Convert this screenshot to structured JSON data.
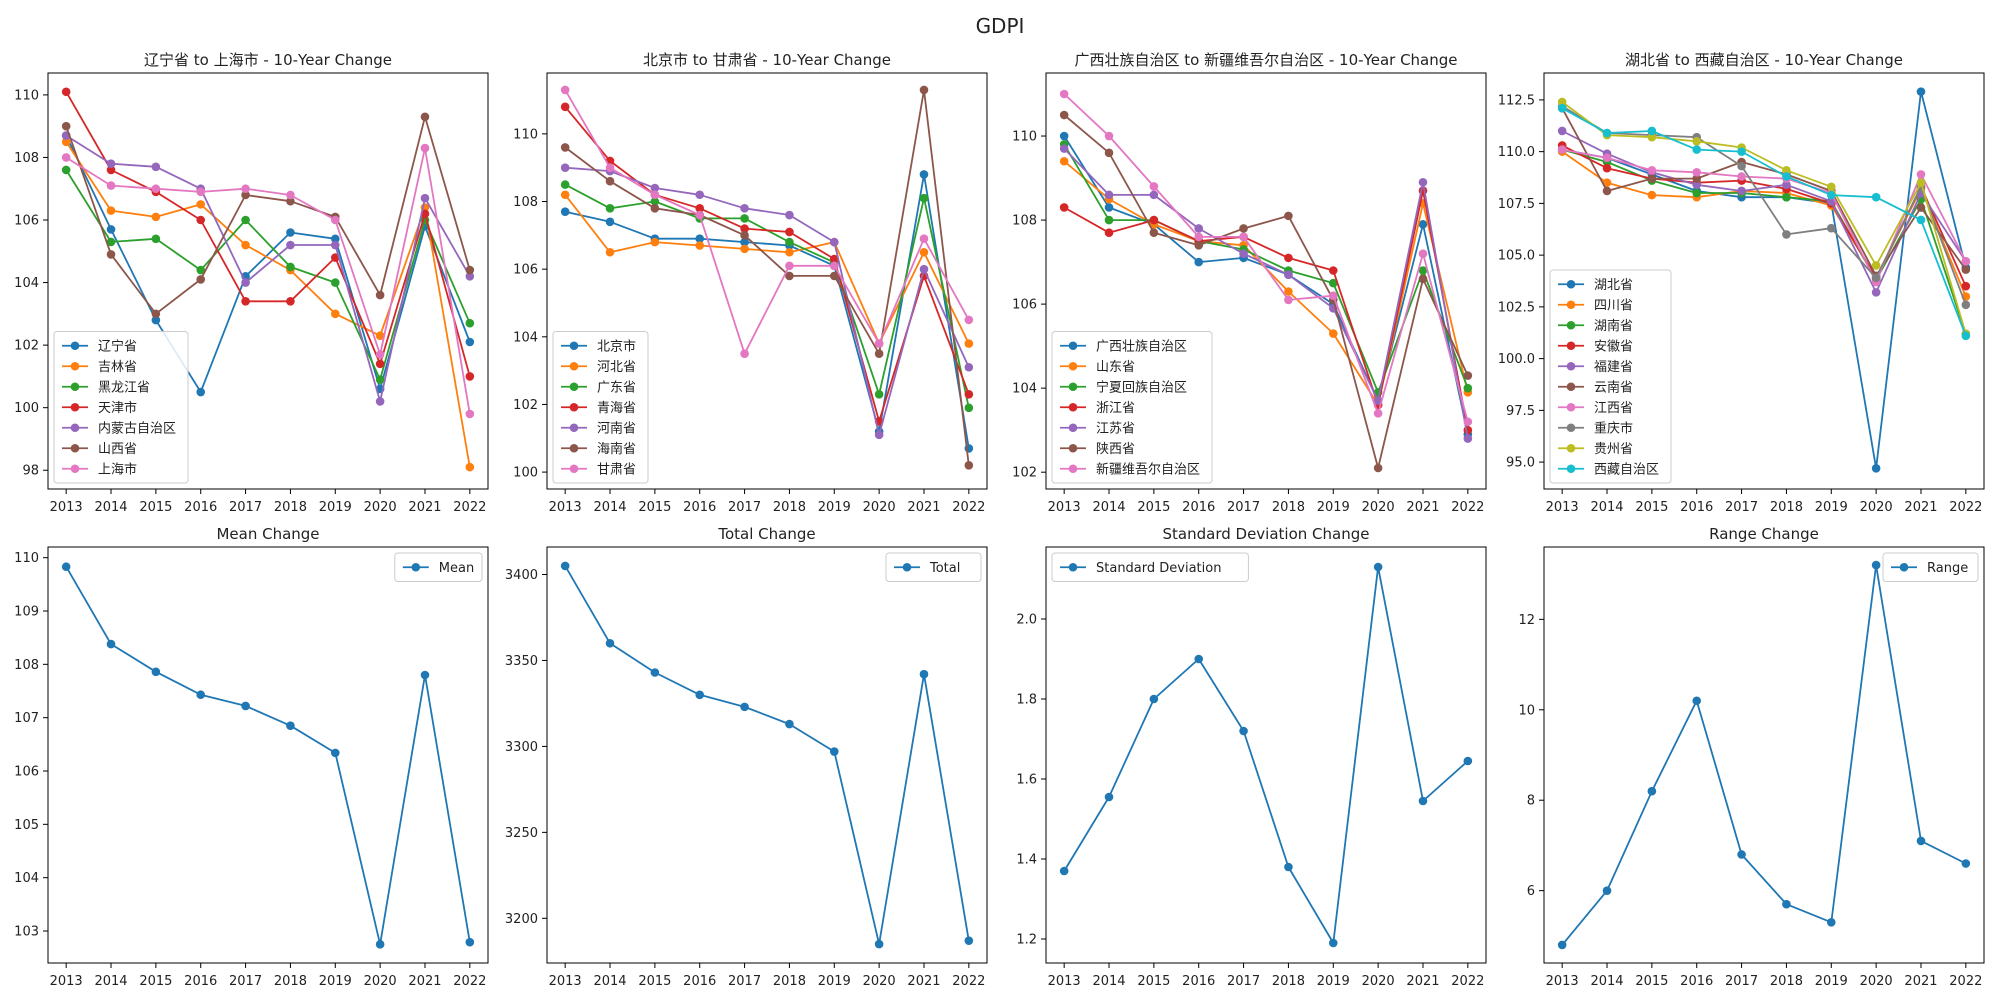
{
  "figure": {
    "title": "GDPI"
  },
  "chart_data": [
    {
      "type": "line",
      "title": "辽宁省 to 上海市 - 10-Year Change",
      "x": [
        2013,
        2014,
        2015,
        2016,
        2017,
        2018,
        2019,
        2020,
        2021,
        2022
      ],
      "ylim": [
        97.4,
        110.7
      ],
      "yticks": [
        98,
        100,
        102,
        104,
        106,
        108,
        110
      ],
      "ytick_labels": [
        "98",
        "100",
        "102",
        "104",
        "106",
        "108",
        "110"
      ],
      "legend": "lower-left",
      "series": [
        {
          "name": "辽宁省",
          "color": "#1f77b4",
          "values": [
            108.7,
            105.7,
            102.8,
            100.5,
            104.2,
            105.6,
            105.4,
            100.6,
            105.8,
            102.1
          ]
        },
        {
          "name": "吉林省",
          "color": "#ff7f0e",
          "values": [
            108.5,
            106.3,
            106.1,
            106.5,
            105.2,
            104.4,
            103.0,
            102.3,
            106.4,
            98.1
          ]
        },
        {
          "name": "黑龙江省",
          "color": "#2ca02c",
          "values": [
            107.6,
            105.3,
            105.4,
            104.4,
            106.0,
            104.5,
            104.0,
            100.9,
            106.0,
            102.7
          ]
        },
        {
          "name": "天津市",
          "color": "#d62728",
          "values": [
            110.1,
            107.6,
            106.9,
            106.0,
            103.4,
            103.4,
            104.8,
            101.4,
            106.2,
            101.0
          ]
        },
        {
          "name": "内蒙古自治区",
          "color": "#9467bd",
          "values": [
            108.7,
            107.8,
            107.7,
            107.0,
            104.0,
            105.2,
            105.2,
            100.2,
            106.7,
            104.2
          ]
        },
        {
          "name": "山西省",
          "color": "#8c564b",
          "values": [
            109.0,
            104.9,
            103.0,
            104.1,
            106.8,
            106.6,
            106.1,
            103.6,
            109.3,
            104.4
          ]
        },
        {
          "name": "上海市",
          "color": "#e377c2",
          "values": [
            108.0,
            107.1,
            107.0,
            106.9,
            107.0,
            106.8,
            106.0,
            101.7,
            108.3,
            99.8
          ]
        }
      ]
    },
    {
      "type": "line",
      "title": "北京市 to 甘肃省 - 10-Year Change",
      "x": [
        2013,
        2014,
        2015,
        2016,
        2017,
        2018,
        2019,
        2020,
        2021,
        2022
      ],
      "ylim": [
        99.5,
        111.8
      ],
      "yticks": [
        100,
        102,
        104,
        106,
        108,
        110
      ],
      "ytick_labels": [
        "100",
        "102",
        "104",
        "106",
        "108",
        "110"
      ],
      "legend": "lower-left",
      "series": [
        {
          "name": "北京市",
          "color": "#1f77b4",
          "values": [
            107.7,
            107.4,
            106.9,
            106.9,
            106.8,
            106.7,
            106.1,
            101.2,
            108.8,
            100.7
          ]
        },
        {
          "name": "河北省",
          "color": "#ff7f0e",
          "values": [
            108.2,
            106.5,
            106.8,
            106.7,
            106.6,
            106.5,
            106.8,
            103.8,
            106.5,
            103.8
          ]
        },
        {
          "name": "广东省",
          "color": "#2ca02c",
          "values": [
            108.5,
            107.8,
            108.0,
            107.5,
            107.5,
            106.8,
            106.2,
            102.3,
            108.1,
            101.9
          ]
        },
        {
          "name": "青海省",
          "color": "#d62728",
          "values": [
            110.8,
            109.2,
            108.2,
            107.8,
            107.2,
            107.1,
            106.3,
            101.5,
            105.8,
            102.3
          ]
        },
        {
          "name": "河南省",
          "color": "#9467bd",
          "values": [
            109.0,
            108.9,
            108.4,
            108.2,
            107.8,
            107.6,
            106.8,
            101.1,
            106.0,
            103.1
          ]
        },
        {
          "name": "海南省",
          "color": "#8c564b",
          "values": [
            109.6,
            108.6,
            107.8,
            107.6,
            107.0,
            105.8,
            105.8,
            103.5,
            111.3,
            100.2
          ]
        },
        {
          "name": "甘肃省",
          "color": "#e377c2",
          "values": [
            111.3,
            109.0,
            108.2,
            107.6,
            103.5,
            106.1,
            106.1,
            103.8,
            106.9,
            104.5
          ]
        }
      ]
    },
    {
      "type": "line",
      "title": "广西壮族自治区 to 新疆维吾尔自治区 - 10-Year Change",
      "x": [
        2013,
        2014,
        2015,
        2016,
        2017,
        2018,
        2019,
        2020,
        2021,
        2022
      ],
      "ylim": [
        101.6,
        111.5
      ],
      "yticks": [
        102,
        104,
        106,
        108,
        110
      ],
      "ytick_labels": [
        "102",
        "104",
        "106",
        "108",
        "110"
      ],
      "legend": "lower-left",
      "series": [
        {
          "name": "广西壮族自治区",
          "color": "#1f77b4",
          "values": [
            110.0,
            108.3,
            107.9,
            107.0,
            107.1,
            106.7,
            106.0,
            103.7,
            107.9,
            102.9
          ]
        },
        {
          "name": "山东省",
          "color": "#ff7f0e",
          "values": [
            109.4,
            108.5,
            107.9,
            107.5,
            107.4,
            106.3,
            105.3,
            103.6,
            108.4,
            103.9
          ]
        },
        {
          "name": "宁夏回族自治区",
          "color": "#2ca02c",
          "values": [
            109.8,
            108.0,
            108.0,
            107.5,
            107.3,
            106.8,
            106.5,
            103.9,
            106.8,
            104.0
          ]
        },
        {
          "name": "浙江省",
          "color": "#d62728",
          "values": [
            108.3,
            107.7,
            108.0,
            107.5,
            107.6,
            107.1,
            106.8,
            103.6,
            108.7,
            103.0
          ]
        },
        {
          "name": "江苏省",
          "color": "#9467bd",
          "values": [
            109.7,
            108.6,
            108.6,
            107.8,
            107.2,
            106.7,
            105.9,
            103.7,
            108.9,
            102.8
          ]
        },
        {
          "name": "陕西省",
          "color": "#8c564b",
          "values": [
            110.5,
            109.6,
            107.7,
            107.4,
            107.8,
            108.1,
            106.1,
            102.1,
            106.6,
            104.3
          ]
        },
        {
          "name": "新疆维吾尔自治区",
          "color": "#e377c2",
          "values": [
            111.0,
            110.0,
            108.8,
            107.6,
            107.6,
            106.1,
            106.2,
            103.4,
            107.2,
            103.2
          ]
        }
      ]
    },
    {
      "type": "line",
      "title": "湖北省 to 西藏自治区 - 10-Year Change",
      "x": [
        2013,
        2014,
        2015,
        2016,
        2017,
        2018,
        2019,
        2020,
        2021,
        2022
      ],
      "ylim": [
        93.7,
        113.8
      ],
      "yticks": [
        95.0,
        97.5,
        100.0,
        102.5,
        105.0,
        107.5,
        110.0,
        112.5
      ],
      "ytick_labels": [
        "95.0",
        "97.5",
        "100.0",
        "102.5",
        "105.0",
        "107.5",
        "110.0",
        "112.5"
      ],
      "legend": "lower-left",
      "series": [
        {
          "name": "湖北省",
          "color": "#1f77b4",
          "values": [
            110.1,
            109.7,
            108.9,
            108.1,
            107.8,
            107.8,
            107.5,
            94.7,
            112.9,
            104.4
          ]
        },
        {
          "name": "四川省",
          "color": "#ff7f0e",
          "values": [
            110.0,
            108.5,
            107.9,
            107.8,
            108.1,
            108.0,
            107.4,
            103.9,
            108.2,
            103.0
          ]
        },
        {
          "name": "湖南省",
          "color": "#2ca02c",
          "values": [
            110.1,
            109.5,
            108.6,
            108.0,
            108.0,
            107.8,
            107.6,
            103.8,
            107.7,
            101.2
          ]
        },
        {
          "name": "安徽省",
          "color": "#d62728",
          "values": [
            110.3,
            109.2,
            108.7,
            108.5,
            108.6,
            108.2,
            107.5,
            103.9,
            108.3,
            103.5
          ]
        },
        {
          "name": "福建省",
          "color": "#9467bd",
          "values": [
            111.0,
            109.9,
            109.0,
            108.4,
            108.1,
            108.4,
            107.6,
            103.2,
            108.0,
            104.7
          ]
        },
        {
          "name": "云南省",
          "color": "#8c564b",
          "values": [
            112.1,
            108.1,
            108.7,
            108.7,
            109.5,
            108.9,
            108.1,
            104.0,
            107.3,
            104.3
          ]
        },
        {
          "name": "江西省",
          "color": "#e377c2",
          "values": [
            110.1,
            109.7,
            109.1,
            109.0,
            108.8,
            108.7,
            108.0,
            103.7,
            108.9,
            104.7
          ]
        },
        {
          "name": "重庆市",
          "color": "#7f7f7f",
          "values": [
            112.2,
            110.9,
            110.8,
            110.7,
            109.3,
            106.0,
            106.3,
            103.9,
            108.3,
            102.6
          ]
        },
        {
          "name": "贵州省",
          "color": "#bcbd22",
          "values": [
            112.4,
            110.8,
            110.7,
            110.5,
            110.2,
            109.1,
            108.3,
            104.5,
            108.5,
            101.2
          ]
        },
        {
          "name": "西藏自治区",
          "color": "#17becf",
          "values": [
            112.1,
            110.9,
            111.0,
            110.1,
            110.0,
            108.8,
            107.9,
            107.8,
            106.7,
            101.1
          ]
        }
      ]
    },
    {
      "type": "line",
      "title": "Mean Change",
      "x": [
        2013,
        2014,
        2015,
        2016,
        2017,
        2018,
        2019,
        2020,
        2021,
        2022
      ],
      "ylim": [
        102.4,
        110.2
      ],
      "yticks": [
        103,
        104,
        105,
        106,
        107,
        108,
        109,
        110
      ],
      "ytick_labels": [
        "103",
        "104",
        "105",
        "106",
        "107",
        "108",
        "109",
        "110"
      ],
      "legend": "upper-right",
      "series": [
        {
          "name": "Mean",
          "color": "#1f77b4",
          "values": [
            109.83,
            108.38,
            107.86,
            107.43,
            107.22,
            106.85,
            106.34,
            102.75,
            107.8,
            102.79
          ]
        }
      ]
    },
    {
      "type": "line",
      "title": "Total Change",
      "x": [
        2013,
        2014,
        2015,
        2016,
        2017,
        2018,
        2019,
        2020,
        2021,
        2022
      ],
      "ylim": [
        3174,
        3416
      ],
      "yticks": [
        3200,
        3250,
        3300,
        3350,
        3400
      ],
      "ytick_labels": [
        "3200",
        "3250",
        "3300",
        "3350",
        "3400"
      ],
      "legend": "upper-right",
      "series": [
        {
          "name": "Total",
          "color": "#1f77b4",
          "values": [
            3405,
            3360,
            3343,
            3330,
            3323,
            3313,
            3297,
            3185,
            3342,
            3187
          ]
        }
      ]
    },
    {
      "type": "line",
      "title": "Standard Deviation Change",
      "x": [
        2013,
        2014,
        2015,
        2016,
        2017,
        2018,
        2019,
        2020,
        2021,
        2022
      ],
      "ylim": [
        1.14,
        2.18
      ],
      "yticks": [
        1.2,
        1.4,
        1.6,
        1.8,
        2.0
      ],
      "ytick_labels": [
        "1.2",
        "1.4",
        "1.6",
        "1.8",
        "2.0"
      ],
      "legend": "upper-left",
      "series": [
        {
          "name": "Standard Deviation",
          "color": "#1f77b4",
          "values": [
            1.37,
            1.555,
            1.8,
            1.9,
            1.72,
            1.38,
            1.19,
            2.13,
            1.545,
            1.645
          ]
        }
      ]
    },
    {
      "type": "line",
      "title": "Range Change",
      "x": [
        2013,
        2014,
        2015,
        2016,
        2017,
        2018,
        2019,
        2020,
        2021,
        2022
      ],
      "ylim": [
        4.4,
        13.6
      ],
      "yticks": [
        6,
        8,
        10,
        12
      ],
      "ytick_labels": [
        "6",
        "8",
        "10",
        "12"
      ],
      "legend": "upper-right",
      "series": [
        {
          "name": "Range",
          "color": "#1f77b4",
          "values": [
            4.8,
            6.0,
            8.2,
            10.2,
            6.8,
            5.7,
            5.3,
            13.2,
            7.1,
            6.6
          ]
        }
      ]
    }
  ]
}
